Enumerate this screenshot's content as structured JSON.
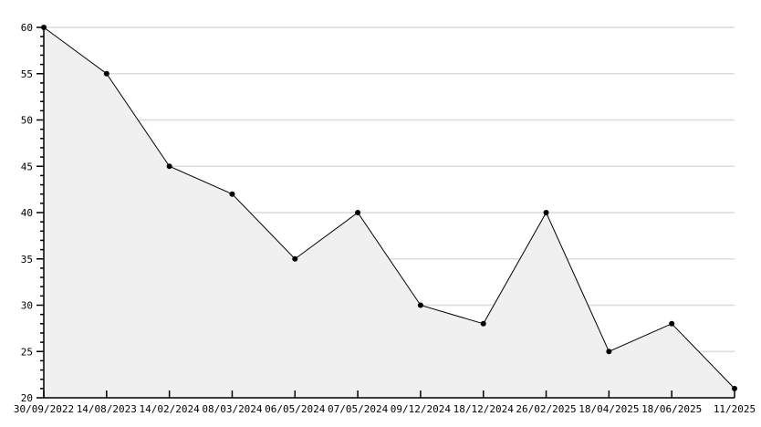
{
  "chart_data": {
    "type": "area",
    "title": "",
    "xlabel": "",
    "ylabel": "",
    "categories": [
      "30/09/2022",
      "14/08/2023",
      "14/02/2024",
      "08/03/2024",
      "06/05/2024",
      "07/05/2024",
      "09/12/2024",
      "18/12/2024",
      "26/02/2025",
      "18/04/2025",
      "18/06/2025",
      "11/2025"
    ],
    "values": [
      60,
      55,
      45,
      42,
      35,
      40,
      30,
      28,
      40,
      25,
      28,
      21
    ],
    "ylim": [
      20,
      60
    ],
    "y_tick_step": 5,
    "y_minor_tick_step": 1,
    "y_tick_labels": [
      "20",
      "25",
      "30",
      "35",
      "40",
      "45",
      "50",
      "55",
      "60"
    ],
    "grid": "horizontal-major-only",
    "legend": "none",
    "marker": "filled-dot",
    "colors": {
      "line": "#000000",
      "marker": "#000000",
      "area_fill": "#f0f0f0",
      "grid_line": "#dcdcdc",
      "axis": "#000000",
      "text": "#000000",
      "background": "#ffffff"
    }
  }
}
